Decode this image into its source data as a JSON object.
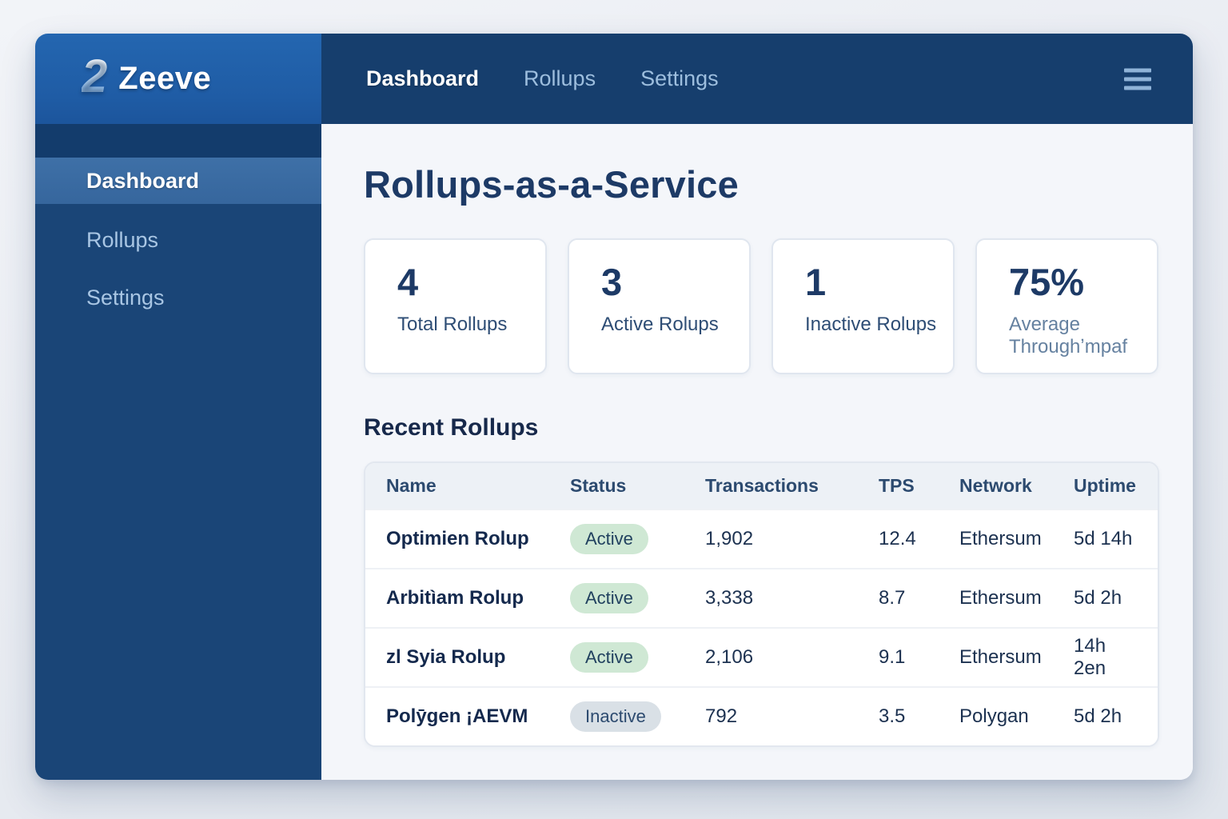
{
  "brand": {
    "logo_glyph": "2",
    "name": "Zeeve"
  },
  "top_nav": {
    "items": [
      {
        "label": "Dashboard",
        "active": true
      },
      {
        "label": "Rollups",
        "active": false
      },
      {
        "label": "Settings",
        "active": false
      }
    ],
    "menu_icon": "hamburger-icon"
  },
  "sidebar": {
    "items": [
      {
        "label": "Dashboard",
        "active": true
      },
      {
        "label": "Rollups",
        "active": false
      },
      {
        "label": "Settings",
        "active": false
      }
    ]
  },
  "page": {
    "title": "Rollups-as-a-Service",
    "section_title": "Recent Rollups"
  },
  "stats": [
    {
      "value": "4",
      "label": "Total Rollups"
    },
    {
      "value": "3",
      "label": "Active Rolups"
    },
    {
      "value": "1",
      "label": "Inactive Rolups"
    },
    {
      "value": "75%",
      "label": "Average Throughʼmpaf"
    }
  ],
  "table": {
    "columns": [
      "Name",
      "Status",
      "Transactions",
      "TPS",
      "Network",
      "Uptime"
    ],
    "rows": [
      {
        "name": "Optimien Rolup",
        "status": "Active",
        "transactions": "1,902",
        "tps": "12.4",
        "network": "Ethersum",
        "uptime": "5d 14h"
      },
      {
        "name": "Arbitìam Rolup",
        "status": "Active",
        "transactions": "3,338",
        "tps": "8.7",
        "network": "Ethersum",
        "uptime": "5d 2h"
      },
      {
        "name": "zl Syia Rolup",
        "status": "Active",
        "transactions": "2,106",
        "tps": "9.1",
        "network": "Ethersum",
        "uptime": "14h 2en"
      },
      {
        "name": "Polȳgen ¡AEVM",
        "status": "Inactive",
        "transactions": "792",
        "tps": "3.5",
        "network": "Polygan",
        "uptime": "5d 2h"
      }
    ]
  },
  "colors": {
    "header_bg": "#163e6d",
    "logo_panel_bg": "#1f5ca5",
    "sidebar_bg": "#1a4577",
    "sidebar_active_bg": "#3b6ca3",
    "content_bg": "#f4f6fa",
    "navy_text": "#1d3a66",
    "badge_active_bg": "#cfe8d4",
    "badge_inactive_bg": "#d9e0e6"
  }
}
